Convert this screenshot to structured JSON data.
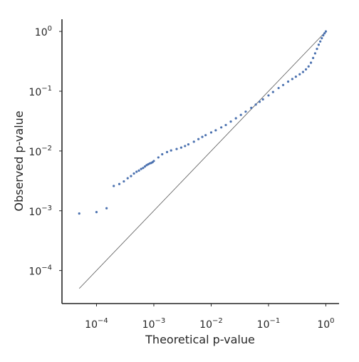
{
  "chart_data": {
    "type": "scatter",
    "title": "",
    "xlabel": "Theoretical p-value",
    "ylabel": "Observed p-value",
    "xscale": "log",
    "yscale": "log",
    "xlim": [
      2.5e-05,
      1.7
    ],
    "ylim": [
      2.8e-05,
      1.6
    ],
    "grid": false,
    "legend": "none",
    "xticks": [
      {
        "value": 0.0001,
        "base": "10",
        "exp": "−4"
      },
      {
        "value": 0.001,
        "base": "10",
        "exp": "−3"
      },
      {
        "value": 0.01,
        "base": "10",
        "exp": "−2"
      },
      {
        "value": 0.1,
        "base": "10",
        "exp": "−1"
      },
      {
        "value": 1,
        "base": "10",
        "exp": "0"
      }
    ],
    "yticks": [
      {
        "value": 0.0001,
        "base": "10",
        "exp": "−4"
      },
      {
        "value": 0.001,
        "base": "10",
        "exp": "−3"
      },
      {
        "value": 0.01,
        "base": "10",
        "exp": "−2"
      },
      {
        "value": 0.1,
        "base": "10",
        "exp": "−1"
      },
      {
        "value": 1,
        "base": "10",
        "exp": "0"
      }
    ],
    "reference_line": {
      "x": [
        5e-05,
        1
      ],
      "y": [
        5e-05,
        1
      ],
      "color": "#555555"
    },
    "marker_color": "#4c72b0",
    "series": [
      {
        "x": [
          5e-05,
          0.0001,
          0.00015,
          0.0002,
          0.00025,
          0.0003,
          0.00035,
          0.0004,
          0.00045,
          0.0005,
          0.00055,
          0.0006,
          0.00065,
          0.0007,
          0.00075,
          0.0008,
          0.00085,
          0.0009,
          0.00095,
          0.001,
          0.0012,
          0.0014,
          0.0017,
          0.002,
          0.0025,
          0.003,
          0.0035,
          0.004,
          0.005,
          0.006,
          0.007,
          0.008,
          0.01,
          0.012,
          0.015,
          0.018,
          0.022,
          0.027,
          0.033,
          0.04,
          0.05,
          0.06,
          0.07,
          0.08,
          0.1,
          0.12,
          0.15,
          0.18,
          0.22,
          0.26,
          0.3,
          0.35,
          0.4,
          0.45,
          0.5,
          0.55,
          0.6,
          0.65,
          0.7,
          0.75,
          0.8,
          0.85,
          0.9,
          0.95,
          1.0
        ],
        "y": [
          0.0009,
          0.00095,
          0.0011,
          0.0026,
          0.0028,
          0.0031,
          0.0035,
          0.0038,
          0.0042,
          0.0045,
          0.0047,
          0.005,
          0.0052,
          0.0055,
          0.0058,
          0.006,
          0.0062,
          0.0063,
          0.0065,
          0.0068,
          0.0078,
          0.0088,
          0.0096,
          0.0102,
          0.0108,
          0.0114,
          0.0121,
          0.0129,
          0.0143,
          0.0158,
          0.0172,
          0.0184,
          0.0204,
          0.0222,
          0.0248,
          0.0272,
          0.031,
          0.0352,
          0.0402,
          0.0455,
          0.0526,
          0.0598,
          0.0665,
          0.073,
          0.085,
          0.097,
          0.113,
          0.127,
          0.145,
          0.16,
          0.175,
          0.192,
          0.21,
          0.232,
          0.26,
          0.3,
          0.36,
          0.43,
          0.51,
          0.6,
          0.68,
          0.77,
          0.86,
          0.93,
          1.0
        ]
      }
    ]
  }
}
